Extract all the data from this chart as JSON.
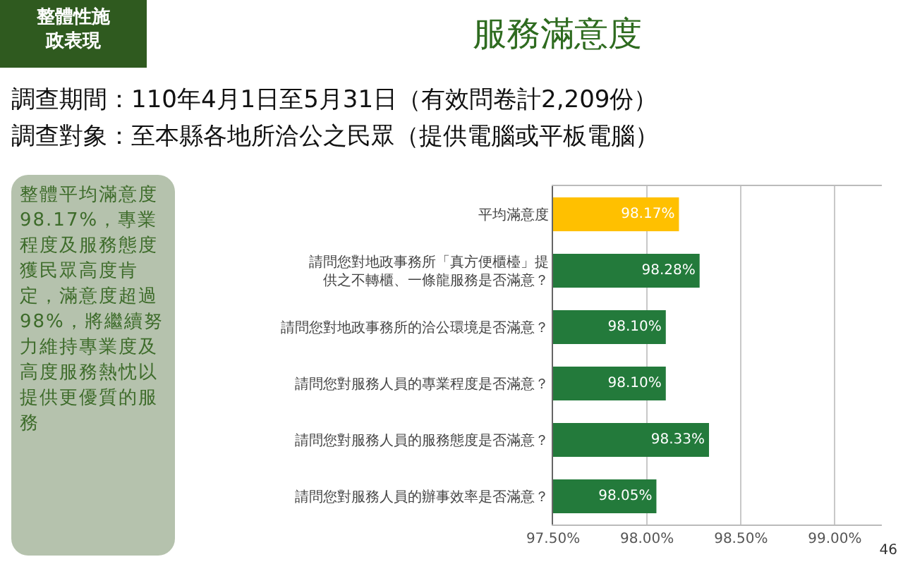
{
  "chart_data": {
    "type": "bar",
    "orientation": "horizontal",
    "title": "服務滿意度",
    "subtitle": "調查期間：110年4月1日至5月31日（有效問卷計2,209份）",
    "annotations": [
      "整體性施政表現",
      "整體平均滿意度98.17%，專業程度及服務態度獲民眾高度肯定，滿意度超過98%，將繼續努力維持專業度及高度服務熱忱以提供更優質的服務",
      "46",
      "調查對象：至本縣各地所洽公之民眾（提供電腦或平板電腦）"
    ],
    "categories": [
      "平均滿意度",
      "請問您對地政事務所「真方便櫃檯」提供之不轉櫃、一條龍服務是否滿意？",
      "請問您對地政事務所的洽公環境是否滿意？",
      "請問您對服務人員的專業程度是否滿意？",
      "請問您對服務人員的服務態度是否滿意？",
      "請問您對服務人員的辦事效率是否滿意？"
    ],
    "values": [
      98.17,
      98.28,
      98.1,
      98.1,
      98.33,
      98.05
    ],
    "value_labels": [
      "98.17%",
      "98.28%",
      "98.10%",
      "98.10%",
      "98.33%",
      "98.05%"
    ],
    "colors": [
      "#ffc000",
      "#237a3b",
      "#237a3b",
      "#237a3b",
      "#237a3b",
      "#237a3b"
    ],
    "xlim": [
      97.5,
      99.25
    ],
    "xticks": [
      {
        "value": 97.5,
        "label": "97.50%"
      },
      {
        "value": 98,
        "label": "98.00%"
      },
      {
        "value": 98.5,
        "label": "98.50%"
      },
      {
        "value": 99,
        "label": "99.00%"
      }
    ],
    "grid": "x"
  }
}
